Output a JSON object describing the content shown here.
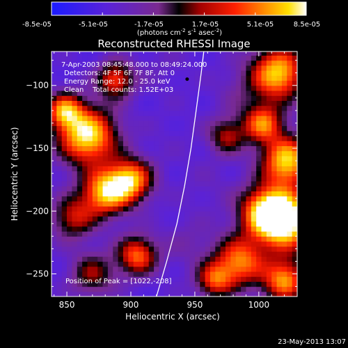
{
  "colorbar": {
    "tick_labels": [
      "-8.5e-05",
      "-5.1e-05",
      "-1.7e-05",
      "1.7e-05",
      "5.1e-05",
      "8.5e-05"
    ],
    "tick_values": [
      -8.5e-05,
      -5.1e-05,
      -1.7e-05,
      1.7e-05,
      5.1e-05,
      8.5e-05
    ],
    "range": [
      -8.5e-05,
      8.5e-05
    ],
    "units_text": "(photons cm",
    "units_exp1": "-2",
    "units_mid": " s",
    "units_exp2": "-1",
    "units_end": " asec",
    "units_exp3": "-2",
    "units_close": ")"
  },
  "plot": {
    "title": "Reconstructed RHESSI Image",
    "info_lines": [
      "7-Apr-2003 08:45:48.000 to 08:49:24.000",
      "Detectors: 4F 5F 6F 7F 8F, Att 0",
      "Energy Range: 12.0 - 25.0 keV",
      "Clean    Total counts: 1.52E+03"
    ],
    "peak_label": "Position of Peak = [1022,-208]",
    "timestamp": "23-May-2013 13:07"
  },
  "chart_data": {
    "type": "heatmap",
    "title": "Reconstructed RHESSI Image",
    "xlabel": "Heliocentric X (arcsec)",
    "ylabel": "Heliocentric Y (arcsec)",
    "xlim": [
      838,
      1030
    ],
    "ylim": [
      -268,
      -73
    ],
    "x_ticks": [
      850,
      900,
      950,
      1000
    ],
    "y_ticks": [
      -100,
      -150,
      -200,
      -250
    ],
    "x_tick_labels": [
      "850",
      "900",
      "950",
      "1000"
    ],
    "y_tick_labels": [
      "−100",
      "−150",
      "−200",
      "−250"
    ],
    "colormap": "rhessi-blue-purple-red-yellow-white",
    "value_range": [
      -8.5e-05,
      8.5e-05
    ],
    "peak_position": [
      1022,
      -208
    ],
    "limb_curve": [
      [
        920,
        -268
      ],
      [
        928,
        -240
      ],
      [
        936,
        -210
      ],
      [
        942,
        -180
      ],
      [
        947,
        -150
      ],
      [
        951,
        -120
      ],
      [
        955,
        -90
      ],
      [
        957,
        -73
      ]
    ],
    "blobs": [
      {
        "x": 866,
        "y": -140,
        "v": 0.95,
        "r": 16
      },
      {
        "x": 848,
        "y": -120,
        "v": 0.55,
        "r": 10
      },
      {
        "x": 900,
        "y": -175,
        "v": 0.7,
        "r": 12
      },
      {
        "x": 880,
        "y": -185,
        "v": 0.75,
        "r": 13
      },
      {
        "x": 905,
        "y": -235,
        "v": 0.55,
        "r": 11
      },
      {
        "x": 855,
        "y": -205,
        "v": 0.25,
        "r": 12
      },
      {
        "x": 888,
        "y": -95,
        "v": 0.45,
        "r": 10
      },
      {
        "x": 925,
        "y": -85,
        "v": -0.45,
        "r": 14
      },
      {
        "x": 930,
        "y": -140,
        "v": -0.5,
        "r": 16
      },
      {
        "x": 960,
        "y": -180,
        "v": -0.45,
        "r": 15
      },
      {
        "x": 945,
        "y": -225,
        "v": -0.35,
        "r": 14
      },
      {
        "x": 985,
        "y": -105,
        "v": -0.35,
        "r": 14
      },
      {
        "x": 985,
        "y": -240,
        "v": 0.6,
        "r": 14
      },
      {
        "x": 1005,
        "y": -200,
        "v": 0.7,
        "r": 14
      },
      {
        "x": 1022,
        "y": -208,
        "v": 1.0,
        "r": 16
      },
      {
        "x": 1022,
        "y": -160,
        "v": 0.85,
        "r": 14
      },
      {
        "x": 1015,
        "y": -90,
        "v": 0.85,
        "r": 15
      },
      {
        "x": 1003,
        "y": -130,
        "v": 0.55,
        "r": 11
      },
      {
        "x": 975,
        "y": -140,
        "v": 0.2,
        "r": 10
      },
      {
        "x": 1020,
        "y": -255,
        "v": 0.65,
        "r": 12
      },
      {
        "x": 870,
        "y": -250,
        "v": 0.15,
        "r": 12
      },
      {
        "x": 965,
        "y": -255,
        "v": 0.35,
        "r": 10
      }
    ]
  }
}
